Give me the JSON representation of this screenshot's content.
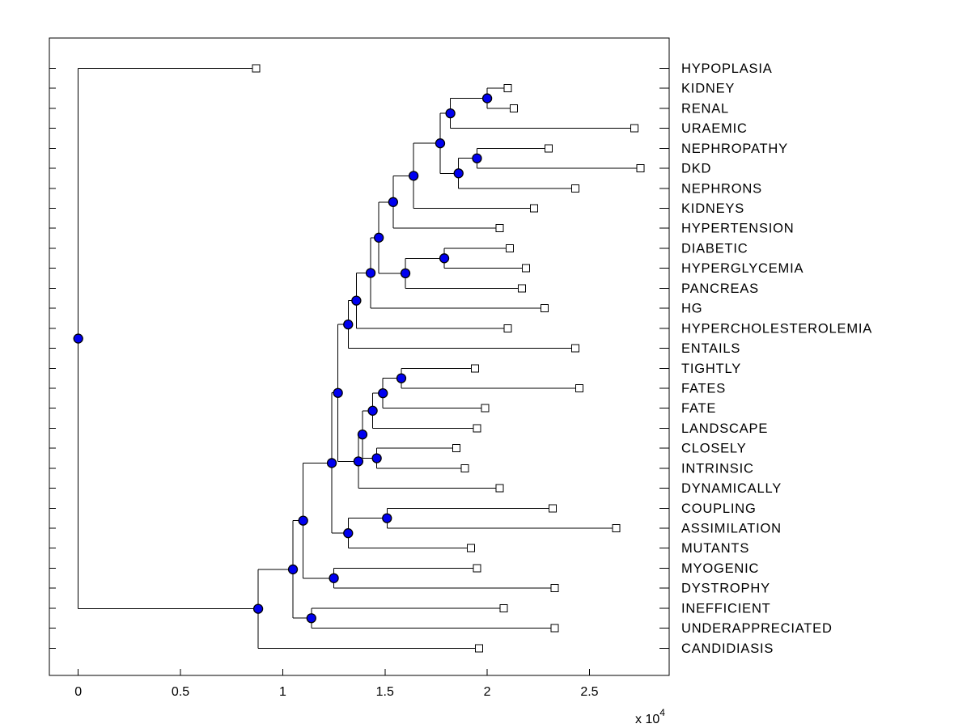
{
  "chart_data": {
    "type": "dendrogram",
    "orientation": "left_to_right",
    "x_axis": {
      "tick_values": [
        0,
        0.5,
        1,
        1.5,
        2,
        2.5
      ],
      "tick_labels": [
        "0",
        "0.5",
        "1",
        "1.5",
        "2",
        "2.5"
      ],
      "exponent_base": "x 10",
      "exponent_power": "4",
      "xlim": [
        -0.141,
        2.889
      ],
      "unit_multiplier": 10000
    },
    "leaves": [
      {
        "label": "HYPOPLASIA",
        "dist": 0.87
      },
      {
        "label": "KIDNEY",
        "dist": 2.1
      },
      {
        "label": "RENAL",
        "dist": 2.13
      },
      {
        "label": "URAEMIC",
        "dist": 2.72
      },
      {
        "label": "NEPHROPATHY",
        "dist": 2.3
      },
      {
        "label": "DKD",
        "dist": 2.75
      },
      {
        "label": "NEPHRONS",
        "dist": 2.43
      },
      {
        "label": "KIDNEYS",
        "dist": 2.23
      },
      {
        "label": "HYPERTENSION",
        "dist": 2.06
      },
      {
        "label": "DIABETIC",
        "dist": 2.11
      },
      {
        "label": "HYPERGLYCEMIA",
        "dist": 2.19
      },
      {
        "label": "PANCREAS",
        "dist": 2.17
      },
      {
        "label": "HG",
        "dist": 2.28
      },
      {
        "label": "HYPERCHOLESTEROLEMIA",
        "dist": 2.1
      },
      {
        "label": "ENTAILS",
        "dist": 2.43
      },
      {
        "label": "TIGHTLY",
        "dist": 1.94
      },
      {
        "label": "FATES",
        "dist": 2.45
      },
      {
        "label": "FATE",
        "dist": 1.99
      },
      {
        "label": "LANDSCAPE",
        "dist": 1.95
      },
      {
        "label": "CLOSELY",
        "dist": 1.85
      },
      {
        "label": "INTRINSIC",
        "dist": 1.89
      },
      {
        "label": "DYNAMICALLY",
        "dist": 2.06
      },
      {
        "label": "COUPLING",
        "dist": 2.32
      },
      {
        "label": "ASSIMILATION",
        "dist": 2.63
      },
      {
        "label": "MUTANTS",
        "dist": 1.92
      },
      {
        "label": "MYOGENIC",
        "dist": 1.95
      },
      {
        "label": "DYSTROPHY",
        "dist": 2.33
      },
      {
        "label": "INEFFICIENT",
        "dist": 2.08
      },
      {
        "label": "UNDERAPPRECIATED",
        "dist": 2.33
      },
      {
        "label": "CANDIDIASIS",
        "dist": 1.96
      }
    ],
    "internal_nodes": [
      {
        "id": "A",
        "children": [
          "L1",
          "L2"
        ],
        "dist": 2.0
      },
      {
        "id": "B",
        "children": [
          "A",
          "L3"
        ],
        "dist": 1.82
      },
      {
        "id": "D",
        "children": [
          "L4",
          "L5"
        ],
        "dist": 1.95
      },
      {
        "id": "E",
        "children": [
          "D",
          "L6"
        ],
        "dist": 1.86
      },
      {
        "id": "C",
        "children": [
          "B",
          "E"
        ],
        "dist": 1.77
      },
      {
        "id": "F",
        "children": [
          "C",
          "L7"
        ],
        "dist": 1.64
      },
      {
        "id": "G",
        "children": [
          "F",
          "L8"
        ],
        "dist": 1.54
      },
      {
        "id": "K",
        "children": [
          "L9",
          "L10"
        ],
        "dist": 1.79
      },
      {
        "id": "J",
        "children": [
          "K",
          "L11"
        ],
        "dist": 1.6
      },
      {
        "id": "H",
        "children": [
          "G",
          "J"
        ],
        "dist": 1.47
      },
      {
        "id": "L",
        "children": [
          "H",
          "L12"
        ],
        "dist": 1.43
      },
      {
        "id": "M",
        "children": [
          "L",
          "L13"
        ],
        "dist": 1.36
      },
      {
        "id": "N",
        "children": [
          "M",
          "L14"
        ],
        "dist": 1.32
      },
      {
        "id": "P1",
        "children": [
          "L15",
          "L16"
        ],
        "dist": 1.58
      },
      {
        "id": "P2",
        "children": [
          "P1",
          "L17"
        ],
        "dist": 1.49
      },
      {
        "id": "P3",
        "children": [
          "P2",
          "L18"
        ],
        "dist": 1.44
      },
      {
        "id": "P4",
        "children": [
          "L19",
          "L20"
        ],
        "dist": 1.46
      },
      {
        "id": "P5",
        "children": [
          "P3",
          "P4"
        ],
        "dist": 1.39
      },
      {
        "id": "P6",
        "children": [
          "P5",
          "L21"
        ],
        "dist": 1.37
      },
      {
        "id": "P7",
        "children": [
          "N",
          "P6"
        ],
        "dist": 1.27
      },
      {
        "id": "Q1",
        "children": [
          "L22",
          "L23"
        ],
        "dist": 1.51
      },
      {
        "id": "Q2",
        "children": [
          "Q1",
          "L24"
        ],
        "dist": 1.32
      },
      {
        "id": "P8",
        "children": [
          "P7",
          "Q2"
        ],
        "dist": 1.24
      },
      {
        "id": "Q4",
        "children": [
          "L25",
          "L26"
        ],
        "dist": 1.25
      },
      {
        "id": "Q3",
        "children": [
          "P8",
          "Q4"
        ],
        "dist": 1.1
      },
      {
        "id": "R2",
        "children": [
          "L27",
          "L28"
        ],
        "dist": 1.14
      },
      {
        "id": "R1",
        "children": [
          "Q3",
          "R2"
        ],
        "dist": 1.05
      },
      {
        "id": "S1",
        "children": [
          "R1",
          "L29"
        ],
        "dist": 0.88
      },
      {
        "id": "ROOT",
        "children": [
          "L0",
          "S1"
        ],
        "dist": 0.0
      }
    ],
    "style": {
      "background": "#ffffff",
      "branch_color": "#000000",
      "node_marker_fill": "#0000f0",
      "node_marker_edge": "#000000",
      "leaf_marker_fill": "#ffffff",
      "leaf_marker_edge": "#000000"
    }
  }
}
